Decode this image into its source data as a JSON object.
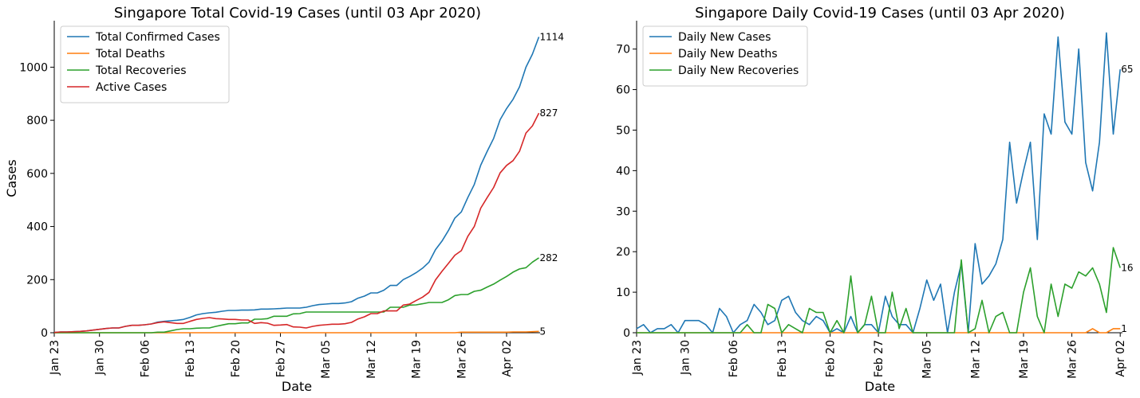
{
  "chart_data": [
    {
      "type": "line",
      "title": "Singapore Total Covid-19 Cases (until 03 Apr 2020)",
      "xlabel": "Date",
      "ylabel": "Cases",
      "x_start": "2020-01-23",
      "x_ticks": [
        "Jan 23",
        "Jan 30",
        "Feb 06",
        "Feb 13",
        "Feb 20",
        "Feb 27",
        "Mar 05",
        "Mar 12",
        "Mar 19",
        "Mar 26",
        "Apr 02"
      ],
      "y_ticks": [
        "0",
        "200",
        "400",
        "600",
        "800",
        "1000"
      ],
      "ylim": [
        0,
        1175
      ],
      "grid": false,
      "legend": "top-left",
      "series": [
        {
          "name": "Total Confirmed Cases",
          "color": "#1f77b4",
          "end_label": "1114",
          "values": [
            1,
            3,
            3,
            4,
            5,
            7,
            10,
            13,
            16,
            18,
            18,
            24,
            28,
            28,
            30,
            33,
            40,
            43,
            45,
            47,
            50,
            58,
            67,
            72,
            75,
            77,
            81,
            84,
            84,
            85,
            85,
            86,
            89,
            89,
            90,
            91,
            93,
            93,
            93,
            96,
            102,
            106,
            108,
            110,
            110,
            112,
            117,
            130,
            138,
            150,
            150,
            160,
            178,
            178,
            200,
            212,
            226,
            243,
            266,
            313,
            345,
            385,
            432,
            455,
            509,
            558,
            631,
            683,
            732,
            802,
            844,
            879,
            926,
            1000,
            1049,
            1114
          ]
        },
        {
          "name": "Total Deaths",
          "color": "#ff7f0e",
          "end_label": "5",
          "values": [
            0,
            0,
            0,
            0,
            0,
            0,
            0,
            0,
            0,
            0,
            0,
            0,
            0,
            0,
            0,
            0,
            0,
            0,
            0,
            0,
            0,
            0,
            0,
            0,
            0,
            0,
            0,
            0,
            0,
            0,
            0,
            0,
            0,
            0,
            0,
            0,
            0,
            0,
            0,
            0,
            0,
            0,
            0,
            0,
            0,
            0,
            0,
            0,
            0,
            0,
            0,
            0,
            0,
            0,
            0,
            0,
            0,
            0,
            0,
            0,
            0,
            0,
            0,
            2,
            2,
            2,
            2,
            2,
            2,
            2,
            2,
            3,
            3,
            3,
            4,
            5
          ]
        },
        {
          "name": "Total Recoveries",
          "color": "#2ca02c",
          "end_label": "282",
          "values": [
            0,
            0,
            0,
            0,
            0,
            0,
            0,
            0,
            0,
            0,
            0,
            0,
            0,
            0,
            0,
            0,
            2,
            2,
            7,
            12,
            15,
            15,
            17,
            18,
            18,
            24,
            29,
            34,
            34,
            37,
            37,
            51,
            51,
            53,
            62,
            62,
            62,
            71,
            72,
            78,
            78,
            78,
            78,
            78,
            78,
            78,
            78,
            78,
            78,
            78,
            78,
            78,
            96,
            96,
            96,
            104,
            105,
            109,
            114,
            114,
            114,
            124,
            140,
            144,
            144,
            156,
            160,
            172,
            183,
            198,
            212,
            228,
            240,
            245,
            266,
            282
          ]
        },
        {
          "name": "Active Cases",
          "color": "#d62728",
          "end_label": "827",
          "values": [
            1,
            3,
            3,
            4,
            5,
            7,
            10,
            13,
            16,
            18,
            18,
            24,
            28,
            28,
            30,
            33,
            38,
            41,
            38,
            35,
            35,
            43,
            50,
            54,
            57,
            53,
            52,
            50,
            50,
            48,
            48,
            35,
            38,
            36,
            28,
            29,
            31,
            22,
            21,
            18,
            24,
            28,
            30,
            32,
            32,
            34,
            39,
            52,
            60,
            72,
            72,
            82,
            82,
            82,
            104,
            108,
            121,
            134,
            152,
            199,
            231,
            261,
            292,
            309,
            363,
            400,
            469,
            509,
            547,
            602,
            630,
            648,
            683,
            752,
            779,
            827
          ]
        }
      ]
    },
    {
      "type": "line",
      "title": "Singapore Daily Covid-19 Cases (until 03 Apr 2020)",
      "xlabel": "Date",
      "ylabel": "",
      "x_start": "2020-01-23",
      "x_ticks": [
        "Jan 23",
        "Jan 30",
        "Feb 06",
        "Feb 13",
        "Feb 20",
        "Feb 27",
        "Mar 05",
        "Mar 12",
        "Mar 19",
        "Mar 26",
        "Apr 02"
      ],
      "y_ticks": [
        "0",
        "10",
        "20",
        "30",
        "40",
        "50",
        "60",
        "70"
      ],
      "ylim": [
        0,
        77
      ],
      "grid": false,
      "legend": "top-left",
      "series": [
        {
          "name": "Daily New Cases",
          "color": "#1f77b4",
          "end_label": "65",
          "values": [
            1,
            2,
            0,
            1,
            1,
            2,
            0,
            3,
            3,
            3,
            2,
            0,
            6,
            4,
            0,
            2,
            3,
            7,
            5,
            2,
            3,
            8,
            9,
            5,
            3,
            2,
            4,
            3,
            0,
            1,
            0,
            4,
            0,
            2,
            2,
            0,
            9,
            4,
            2,
            2,
            0,
            6,
            13,
            8,
            12,
            0,
            10,
            17,
            0,
            22,
            12,
            14,
            17,
            23,
            47,
            32,
            40,
            47,
            23,
            54,
            49,
            73,
            52,
            49,
            70,
            42,
            35,
            47,
            74,
            49,
            65
          ]
        },
        {
          "name": "Daily New Deaths",
          "color": "#ff7f0e",
          "end_label": "1",
          "values": [
            0,
            0,
            0,
            0,
            0,
            0,
            0,
            0,
            0,
            0,
            0,
            0,
            0,
            0,
            0,
            0,
            0,
            0,
            0,
            0,
            0,
            0,
            0,
            0,
            0,
            0,
            0,
            0,
            0,
            0,
            0,
            0,
            0,
            0,
            0,
            0,
            0,
            0,
            0,
            0,
            0,
            0,
            0,
            0,
            0,
            0,
            0,
            0,
            0,
            0,
            0,
            0,
            0,
            0,
            0,
            0,
            0,
            0,
            0,
            0,
            0,
            0,
            0,
            0,
            0,
            0,
            1,
            0,
            0,
            1,
            1
          ]
        },
        {
          "name": "Daily New Recoveries",
          "color": "#2ca02c",
          "end_label": "16",
          "values": [
            0,
            0,
            0,
            0,
            0,
            0,
            0,
            0,
            0,
            0,
            0,
            0,
            0,
            0,
            0,
            0,
            2,
            0,
            0,
            7,
            6,
            0,
            2,
            1,
            0,
            6,
            5,
            5,
            0,
            3,
            0,
            14,
            0,
            2,
            9,
            0,
            0,
            10,
            1,
            6,
            0,
            0,
            0,
            0,
            0,
            0,
            0,
            18,
            0,
            1,
            8,
            0,
            4,
            5,
            0,
            0,
            10,
            16,
            4,
            0,
            12,
            4,
            12,
            11,
            15,
            14,
            16,
            12,
            5,
            21,
            16
          ]
        }
      ]
    }
  ]
}
